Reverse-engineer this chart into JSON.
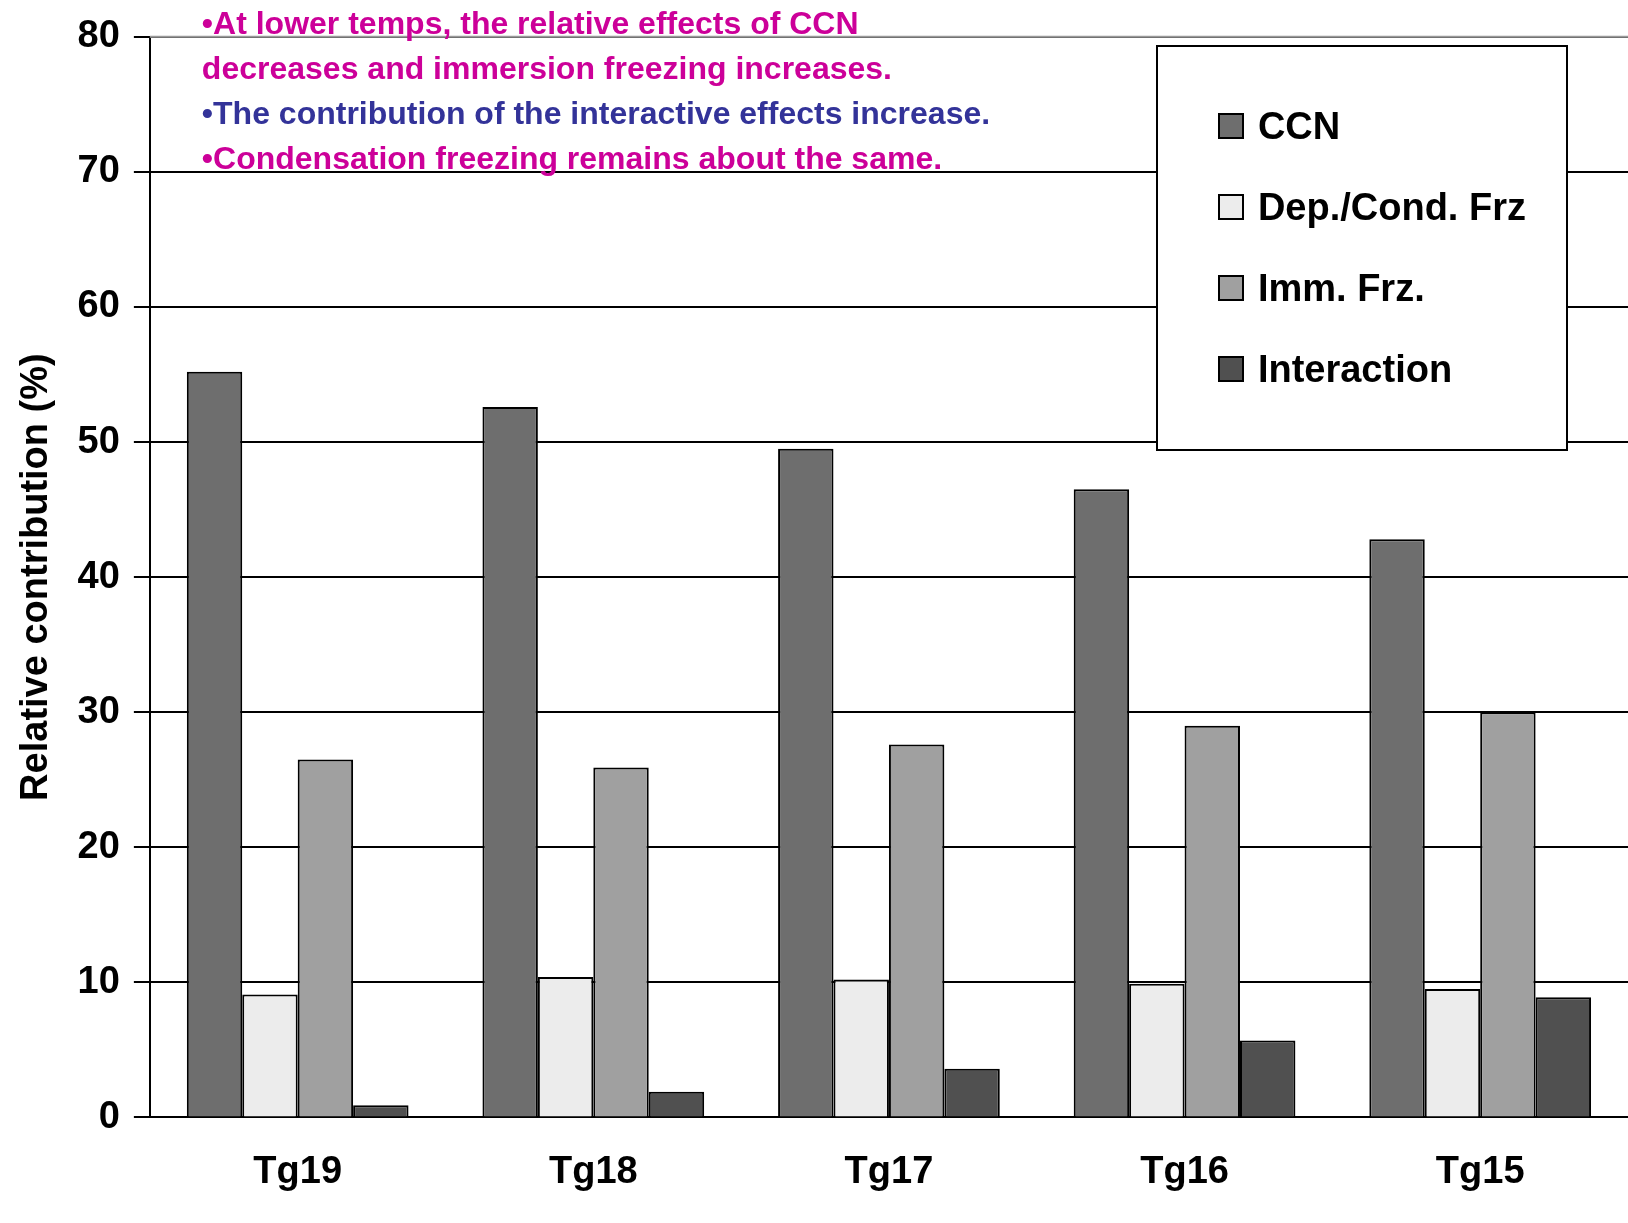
{
  "chart_data": {
    "type": "bar",
    "ylabel": "Relative contribution (%)",
    "categories": [
      "Tg19",
      "Tg18",
      "Tg17",
      "Tg16",
      "Tg15"
    ],
    "series": [
      {
        "name": "CCN",
        "color": "#6e6e6e",
        "values": [
          55.2,
          52.6,
          49.5,
          46.5,
          42.8
        ]
      },
      {
        "name": "Dep./Cond. Frz",
        "color": "#ececec",
        "values": [
          9.1,
          10.4,
          10.2,
          9.9,
          9.5
        ]
      },
      {
        "name": "Imm. Frz.",
        "color": "#a0a0a0",
        "values": [
          26.5,
          25.9,
          27.6,
          29.0,
          30.0
        ]
      },
      {
        "name": "Interaction",
        "color": "#505050",
        "values": [
          0.9,
          1.9,
          3.6,
          5.7,
          8.9
        ]
      }
    ],
    "ylim": [
      0,
      80
    ],
    "yticks": [
      0,
      10,
      20,
      30,
      40,
      50,
      60,
      70,
      80
    ],
    "grid": "y",
    "legend": "top right",
    "annotations": [
      "•At lower temps, the relative effects of CCN decreases and immersion freezing increases.",
      "•The contribution of the interactive effects increase.",
      "•Condensation freezing remains about the same."
    ]
  }
}
